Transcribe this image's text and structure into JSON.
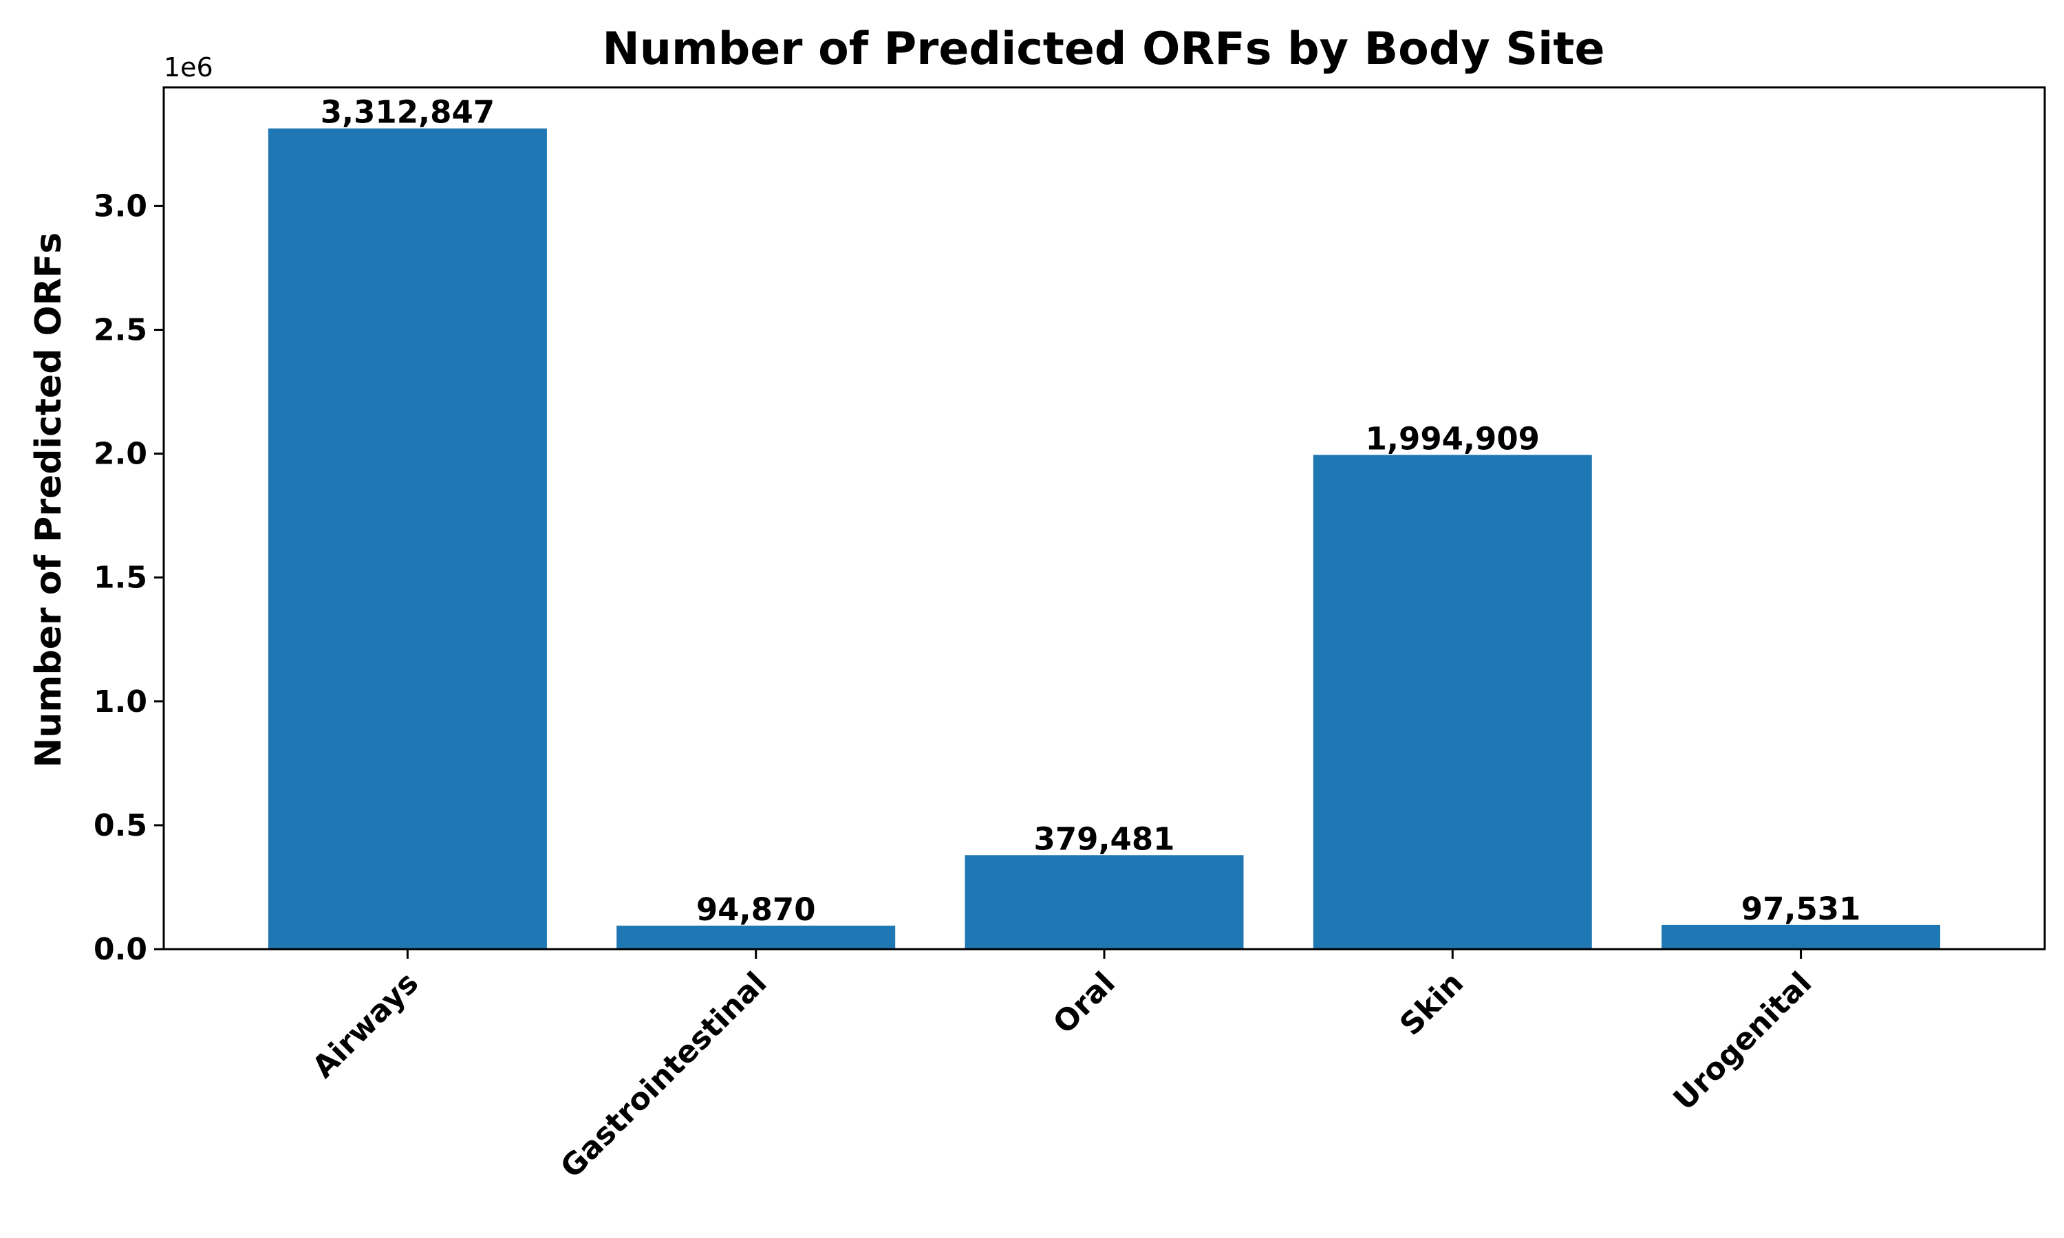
{
  "chart_data": {
    "type": "bar",
    "title": "Number of Predicted ORFs by Body Site",
    "xlabel": "",
    "ylabel": "Number of Predicted ORFs",
    "categories": [
      "Airways",
      "Gastrointestinal",
      "Oral",
      "Skin",
      "Urogenital"
    ],
    "values": [
      3312847,
      94870,
      379481,
      1994909,
      97531
    ],
    "value_labels": [
      "3,312,847",
      "94,870",
      "379,481",
      "1,994,909",
      "97,531"
    ],
    "ylim": [
      0,
      3478489
    ],
    "yticks": [
      0.0,
      0.5,
      1.0,
      1.5,
      2.0,
      2.5,
      3.0
    ],
    "ytick_labels": [
      "0.0",
      "0.5",
      "1.0",
      "1.5",
      "2.0",
      "2.5",
      "3.0"
    ],
    "y_scale_factor": 1000000,
    "y_offset_label": "1e6",
    "bar_color": "#1f77b4",
    "grid": false,
    "x_tick_rotation_deg": 45
  }
}
